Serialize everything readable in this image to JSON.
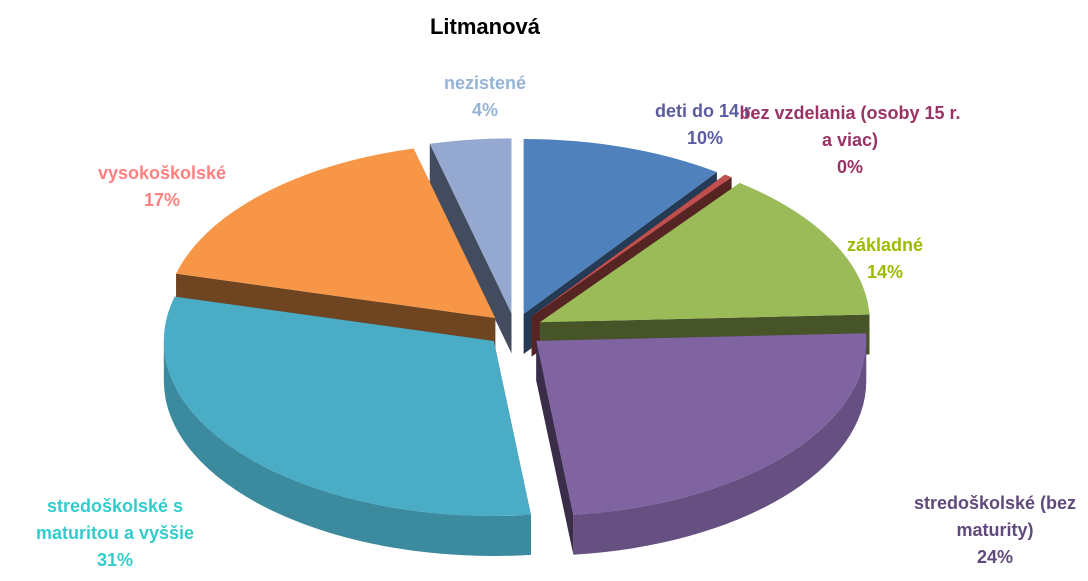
{
  "chart_data": {
    "type": "pie3d",
    "title": "Litmanová",
    "categories": [
      "deti do 14 r.",
      "bez vzdelania (osoby 15 r. a viac)",
      "základné",
      "stredoškolské (bez maturity)",
      "stredoškolské s maturitou a vyššie",
      "vysokoškolské",
      "nezistené"
    ],
    "values": [
      10,
      0.4,
      14,
      24,
      31,
      17,
      4
    ],
    "value_labels": [
      "10%",
      "0%",
      "14%",
      "24%",
      "31%",
      "17%",
      "4%"
    ],
    "colors": [
      "#4f81bd",
      "#c0504d",
      "#9bbb59",
      "#8064a2",
      "#4bacc6",
      "#f79646",
      "#95a9d0"
    ],
    "label_colors": [
      "#5b5ba0",
      "#993366",
      "#9bbb00",
      "#604a7b",
      "#33cccc",
      "#ff8080",
      "#95b3d7"
    ]
  }
}
